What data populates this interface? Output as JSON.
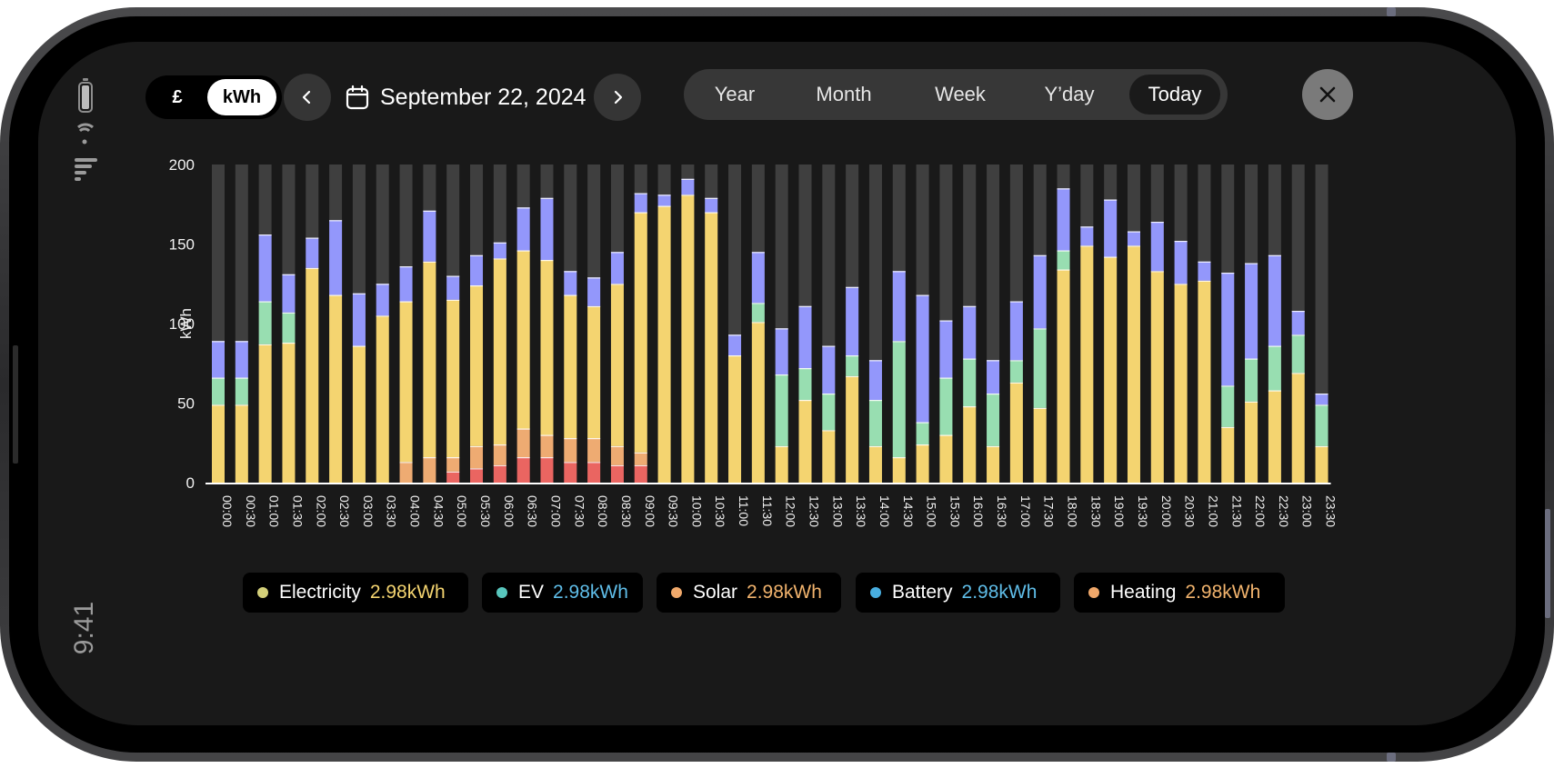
{
  "status": {
    "time": "9:41",
    "icons": [
      "battery-icon",
      "wifi-icon",
      "cellular-signal-icon"
    ]
  },
  "toolbar": {
    "unit_options": [
      "£",
      "kWh"
    ],
    "selected_unit": "kWh",
    "prev_icon": "chevron-left-icon",
    "next_icon": "chevron-right-icon",
    "calendar_icon": "calendar-icon",
    "date": "September 22, 2024",
    "periods": [
      "Year",
      "Month",
      "Week",
      "Y’day",
      "Today"
    ],
    "selected_period": "Today",
    "close_icon": "close-icon"
  },
  "colors": {
    "electricity": "#f4d470",
    "ev": "#98deb1",
    "solar_light": "#eeab72",
    "solar_dark": "#ea6561",
    "battery": "#9397fb",
    "capacity": "#3f3f3f",
    "legend_electricity_dot": "#d4d07a",
    "legend_ev_dot": "#58c6bd",
    "legend_solar_dot": "#f1a96b",
    "legend_battery_dot": "#48aee0",
    "legend_heating_dot": "#f0a86a",
    "legend_electricity_value": "#f4d470",
    "legend_ev_value": "#5fbde8",
    "legend_solar_value": "#f1b36d",
    "legend_battery_value": "#5fbde8",
    "legend_heating_value": "#f1b36d"
  },
  "chart_data": {
    "type": "bar",
    "stacked": true,
    "ylabel": "kWh",
    "ylim": [
      0,
      200
    ],
    "yticks": [
      0,
      50,
      100,
      150,
      200
    ],
    "capacity": 200,
    "categories": [
      "00:00",
      "00:30",
      "01:00",
      "01:30",
      "02:00",
      "02:30",
      "03:00",
      "03:30",
      "04:00",
      "04:30",
      "05:00",
      "05:30",
      "06:00",
      "06:30",
      "07:00",
      "07:30",
      "08:00",
      "08:30",
      "09:00",
      "09:30",
      "10:00",
      "10:30",
      "11:00",
      "11:30",
      "12:00",
      "12:30",
      "13:00",
      "13:30",
      "14:00",
      "14:30",
      "15:00",
      "15:30",
      "16:00",
      "16:30",
      "17:00",
      "17:30",
      "18:00",
      "18:30",
      "19:00",
      "19:30",
      "20:00",
      "20:30",
      "21:00",
      "21:30",
      "22:00",
      "22:30",
      "23:00",
      "23:30"
    ],
    "series": [
      {
        "key": "solar_dark",
        "values": [
          0,
          0,
          0,
          0,
          0,
          0,
          0,
          0,
          0,
          0,
          7,
          9,
          11,
          16,
          16,
          13,
          13,
          11,
          11,
          0,
          0,
          0,
          0,
          0,
          0,
          0,
          0,
          0,
          0,
          0,
          0,
          0,
          0,
          0,
          0,
          0,
          0,
          0,
          0,
          0,
          0,
          0,
          0,
          0,
          0,
          0,
          0,
          0
        ]
      },
      {
        "key": "solar_light",
        "values": [
          0,
          0,
          0,
          0,
          0,
          0,
          0,
          0,
          13,
          16,
          9,
          14,
          13,
          18,
          14,
          15,
          15,
          12,
          8,
          0,
          0,
          0,
          0,
          0,
          0,
          0,
          0,
          0,
          0,
          0,
          0,
          0,
          0,
          0,
          0,
          0,
          0,
          0,
          0,
          0,
          0,
          0,
          0,
          0,
          0,
          0,
          0,
          0
        ]
      },
      {
        "key": "electricity",
        "values": [
          49,
          49,
          87,
          88,
          135,
          118,
          86,
          105,
          101,
          123,
          99,
          101,
          117,
          112,
          110,
          90,
          83,
          102,
          151,
          174,
          181,
          170,
          80,
          101,
          23,
          52,
          33,
          67,
          23,
          16,
          24,
          30,
          48,
          23,
          63,
          47,
          134,
          149,
          142,
          149,
          133,
          125,
          127,
          35,
          51,
          58,
          69,
          23
        ]
      },
      {
        "key": "ev",
        "values": [
          17,
          17,
          27,
          19,
          0,
          0,
          0,
          0,
          0,
          0,
          0,
          0,
          0,
          0,
          0,
          0,
          0,
          0,
          0,
          0,
          0,
          0,
          0,
          12,
          45,
          20,
          23,
          13,
          29,
          73,
          14,
          36,
          30,
          33,
          14,
          50,
          12,
          0,
          0,
          0,
          0,
          0,
          0,
          26,
          27,
          28,
          24,
          26
        ]
      },
      {
        "key": "battery",
        "values": [
          23,
          23,
          42,
          24,
          19,
          47,
          33,
          20,
          22,
          32,
          15,
          19,
          10,
          27,
          39,
          15,
          18,
          20,
          12,
          7,
          10,
          9,
          13,
          32,
          29,
          39,
          30,
          43,
          25,
          44,
          80,
          36,
          33,
          21,
          37,
          46,
          39,
          12,
          36,
          9,
          31,
          27,
          12,
          71,
          60,
          57,
          15,
          7
        ]
      }
    ]
  },
  "legend": [
    {
      "key": "electricity",
      "name": "Electricity",
      "value": "2.98kWh"
    },
    {
      "key": "ev",
      "name": "EV",
      "value": "2.98kWh"
    },
    {
      "key": "solar",
      "name": "Solar",
      "value": "2.98kWh"
    },
    {
      "key": "battery",
      "name": "Battery",
      "value": "2.98kWh"
    },
    {
      "key": "heating",
      "name": "Heating",
      "value": "2.98kWh"
    }
  ]
}
